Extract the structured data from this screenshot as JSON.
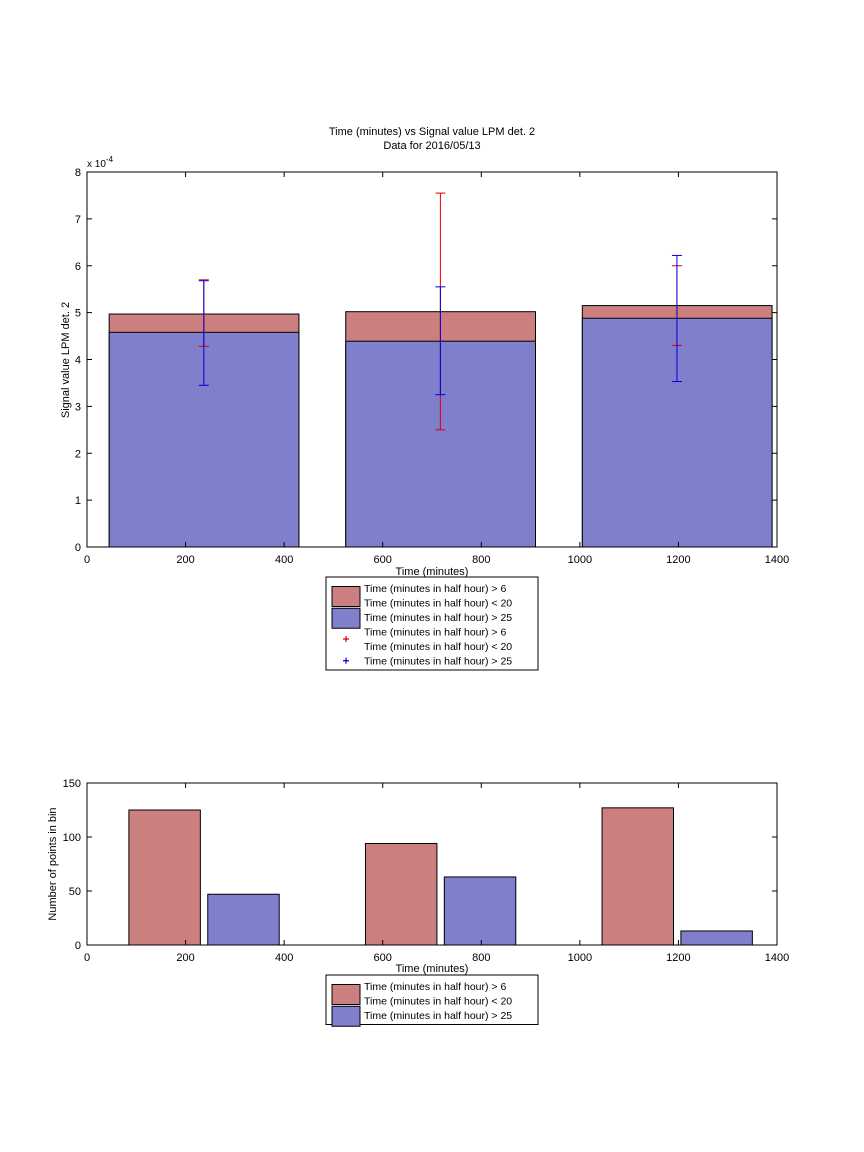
{
  "chart_data": [
    {
      "type": "bar",
      "title": "Time (minutes) vs Signal value LPM det. 2",
      "subtitle": "Data for 2016/05/13",
      "xlabel": "Time (minutes)",
      "ylabel": "Signal value LPM det. 2",
      "exponent_label": "x 10",
      "exponent_power": "-4",
      "xlim": [
        0,
        1400
      ],
      "ylim": [
        0,
        8
      ],
      "xticks": [
        "0",
        "200",
        "400",
        "600",
        "800",
        "1000",
        "1200",
        "1400"
      ],
      "yticks": [
        "0",
        "1",
        "2",
        "3",
        "4",
        "5",
        "6",
        "7",
        "8"
      ],
      "grid": false,
      "legend_position": "bottom-outside",
      "bars": [
        {
          "x_start": 45,
          "x_end": 430,
          "red_top": 4.97,
          "blue_top": 4.58
        },
        {
          "x_start": 525,
          "x_end": 910,
          "red_top": 5.02,
          "blue_top": 4.39
        },
        {
          "x_start": 1005,
          "x_end": 1390,
          "red_top": 5.15,
          "blue_top": 4.88
        }
      ],
      "errorbars": [
        {
          "series": "red",
          "x": 237,
          "y": 5.0,
          "low": 4.28,
          "high": 5.7
        },
        {
          "series": "blue",
          "x": 237,
          "y": 4.6,
          "low": 3.45,
          "high": 5.68
        },
        {
          "series": "red",
          "x": 717,
          "y": 5.05,
          "low": 2.5,
          "high": 7.55
        },
        {
          "series": "blue",
          "x": 717,
          "y": 4.4,
          "low": 3.25,
          "high": 5.55
        },
        {
          "series": "red",
          "x": 1197,
          "y": 5.15,
          "low": 4.3,
          "high": 6.0
        },
        {
          "series": "blue",
          "x": 1197,
          "y": 4.85,
          "low": 3.53,
          "high": 6.22
        }
      ],
      "legend": [
        {
          "kind": "patch",
          "color": "#cc7f7f",
          "lines": [
            "Time (minutes in half hour) > 6",
            "Time (minutes in half hour) < 20"
          ]
        },
        {
          "kind": "patch",
          "color": "#7f7fcc",
          "lines": [
            "Time (minutes in half hour) > 25"
          ]
        },
        {
          "kind": "marker",
          "color": "#dd0000",
          "lines": [
            "Time (minutes in half hour) > 6",
            "Time (minutes in half hour) < 20"
          ]
        },
        {
          "kind": "marker",
          "color": "#0000dd",
          "lines": [
            "Time (minutes in half hour) > 25"
          ]
        }
      ],
      "colors": {
        "red_fill": "#cc7f7f",
        "blue_fill": "#7f7fcc",
        "red_err": "#dd0000",
        "blue_err": "#0000dd"
      }
    },
    {
      "type": "bar",
      "xlabel": "Time (minutes)",
      "ylabel": "Number of points in bin",
      "xlim": [
        0,
        1400
      ],
      "ylim": [
        0,
        150
      ],
      "xticks": [
        "0",
        "200",
        "400",
        "600",
        "800",
        "1000",
        "1200",
        "1400"
      ],
      "yticks": [
        "0",
        "50",
        "100",
        "150"
      ],
      "grid": false,
      "legend_position": "bottom-outside",
      "series": [
        {
          "color": "#cc7f7f",
          "values": [
            {
              "x_start": 85,
              "x_end": 230,
              "value": 125
            },
            {
              "x_start": 565,
              "x_end": 710,
              "value": 94
            },
            {
              "x_start": 1045,
              "x_end": 1190,
              "value": 127
            }
          ]
        },
        {
          "color": "#7f7fcc",
          "values": [
            {
              "x_start": 245,
              "x_end": 390,
              "value": 47
            },
            {
              "x_start": 725,
              "x_end": 870,
              "value": 63
            },
            {
              "x_start": 1205,
              "x_end": 1350,
              "value": 13
            }
          ]
        }
      ],
      "legend": [
        {
          "kind": "patch",
          "color": "#cc7f7f",
          "lines": [
            "Time (minutes in half hour) > 6",
            "Time (minutes in half hour) < 20"
          ]
        },
        {
          "kind": "patch",
          "color": "#7f7fcc",
          "lines": [
            "Time (minutes in half hour) > 25"
          ]
        }
      ]
    }
  ]
}
